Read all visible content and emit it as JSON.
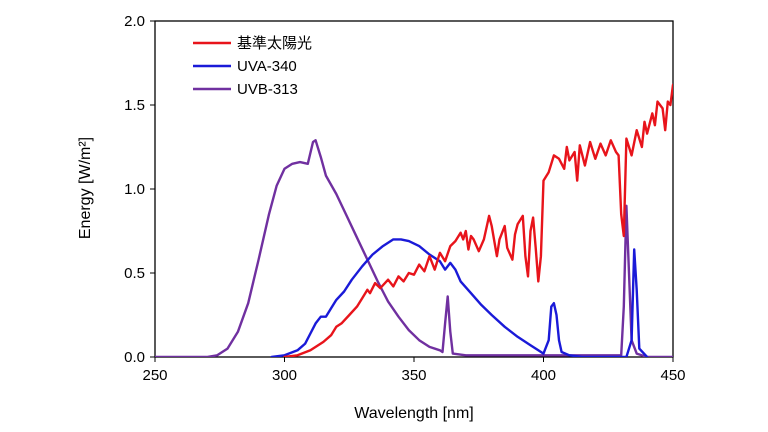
{
  "chart_data": {
    "type": "line",
    "title": "",
    "xlabel": "Wavelength [nm]",
    "ylabel": "Energy [W/m²]",
    "xlim": [
      250,
      450
    ],
    "ylim": [
      0,
      2.0
    ],
    "x_ticks": [
      250,
      300,
      350,
      400,
      450
    ],
    "y_ticks": [
      0.0,
      0.5,
      1.0,
      1.5,
      2.0
    ],
    "x_tick_labels": [
      "250",
      "300",
      "350",
      "400",
      "450"
    ],
    "y_tick_labels": [
      "0.0",
      "0.5",
      "1.0",
      "1.5",
      "2.0"
    ],
    "legend_position": "top-left",
    "series": [
      {
        "name": "基準太陽光",
        "color": "#e8141b",
        "points": [
          [
            300,
            0.0
          ],
          [
            305,
            0.01
          ],
          [
            310,
            0.04
          ],
          [
            315,
            0.09
          ],
          [
            318,
            0.13
          ],
          [
            320,
            0.18
          ],
          [
            322,
            0.2
          ],
          [
            325,
            0.25
          ],
          [
            328,
            0.3
          ],
          [
            330,
            0.35
          ],
          [
            332,
            0.4
          ],
          [
            333,
            0.38
          ],
          [
            335,
            0.44
          ],
          [
            337,
            0.41
          ],
          [
            340,
            0.46
          ],
          [
            342,
            0.42
          ],
          [
            344,
            0.48
          ],
          [
            346,
            0.45
          ],
          [
            348,
            0.5
          ],
          [
            350,
            0.49
          ],
          [
            352,
            0.55
          ],
          [
            354,
            0.51
          ],
          [
            356,
            0.6
          ],
          [
            358,
            0.52
          ],
          [
            360,
            0.62
          ],
          [
            362,
            0.57
          ],
          [
            364,
            0.66
          ],
          [
            366,
            0.69
          ],
          [
            368,
            0.74
          ],
          [
            369,
            0.7
          ],
          [
            370,
            0.75
          ],
          [
            371,
            0.64
          ],
          [
            372,
            0.72
          ],
          [
            373,
            0.7
          ],
          [
            375,
            0.63
          ],
          [
            377,
            0.7
          ],
          [
            379,
            0.84
          ],
          [
            380,
            0.78
          ],
          [
            382,
            0.6
          ],
          [
            383,
            0.7
          ],
          [
            385,
            0.78
          ],
          [
            386,
            0.65
          ],
          [
            388,
            0.58
          ],
          [
            389,
            0.73
          ],
          [
            390,
            0.79
          ],
          [
            392,
            0.84
          ],
          [
            393,
            0.6
          ],
          [
            394,
            0.48
          ],
          [
            395,
            0.75
          ],
          [
            396,
            0.83
          ],
          [
            397,
            0.65
          ],
          [
            398,
            0.45
          ],
          [
            399,
            0.6
          ],
          [
            400,
            1.05
          ],
          [
            402,
            1.1
          ],
          [
            404,
            1.2
          ],
          [
            406,
            1.18
          ],
          [
            408,
            1.12
          ],
          [
            409,
            1.25
          ],
          [
            410,
            1.17
          ],
          [
            412,
            1.22
          ],
          [
            413,
            1.05
          ],
          [
            414,
            1.26
          ],
          [
            416,
            1.14
          ],
          [
            418,
            1.28
          ],
          [
            420,
            1.18
          ],
          [
            422,
            1.27
          ],
          [
            424,
            1.2
          ],
          [
            426,
            1.29
          ],
          [
            428,
            1.22
          ],
          [
            429,
            1.2
          ],
          [
            430,
            0.85
          ],
          [
            431,
            0.72
          ],
          [
            432,
            1.3
          ],
          [
            434,
            1.2
          ],
          [
            436,
            1.35
          ],
          [
            438,
            1.25
          ],
          [
            439,
            1.4
          ],
          [
            440,
            1.33
          ],
          [
            442,
            1.45
          ],
          [
            443,
            1.38
          ],
          [
            444,
            1.52
          ],
          [
            446,
            1.48
          ],
          [
            447,
            1.35
          ],
          [
            448,
            1.52
          ],
          [
            449,
            1.5
          ],
          [
            450,
            1.62
          ]
        ]
      },
      {
        "name": "UVA-340",
        "color": "#1a1ad8",
        "points": [
          [
            295,
            0.0
          ],
          [
            300,
            0.01
          ],
          [
            305,
            0.04
          ],
          [
            308,
            0.08
          ],
          [
            310,
            0.14
          ],
          [
            312,
            0.2
          ],
          [
            314,
            0.24
          ],
          [
            316,
            0.24
          ],
          [
            318,
            0.29
          ],
          [
            320,
            0.34
          ],
          [
            323,
            0.39
          ],
          [
            326,
            0.46
          ],
          [
            330,
            0.54
          ],
          [
            334,
            0.61
          ],
          [
            338,
            0.66
          ],
          [
            342,
            0.7
          ],
          [
            345,
            0.7
          ],
          [
            348,
            0.69
          ],
          [
            352,
            0.66
          ],
          [
            356,
            0.61
          ],
          [
            360,
            0.57
          ],
          [
            362,
            0.52
          ],
          [
            364,
            0.56
          ],
          [
            366,
            0.52
          ],
          [
            368,
            0.45
          ],
          [
            372,
            0.38
          ],
          [
            376,
            0.31
          ],
          [
            380,
            0.25
          ],
          [
            385,
            0.18
          ],
          [
            390,
            0.12
          ],
          [
            395,
            0.07
          ],
          [
            398,
            0.04
          ],
          [
            400,
            0.02
          ],
          [
            402,
            0.1
          ],
          [
            403,
            0.3
          ],
          [
            404,
            0.32
          ],
          [
            405,
            0.25
          ],
          [
            406,
            0.1
          ],
          [
            407,
            0.03
          ],
          [
            410,
            0.01
          ],
          [
            415,
            0.0
          ],
          [
            432,
            0.0
          ],
          [
            434,
            0.1
          ],
          [
            435,
            0.64
          ],
          [
            436,
            0.4
          ],
          [
            437,
            0.05
          ],
          [
            440,
            0.0
          ]
        ]
      },
      {
        "name": "UVB-313",
        "color": "#7030a0",
        "points": [
          [
            250,
            0.0
          ],
          [
            270,
            0.0
          ],
          [
            274,
            0.01
          ],
          [
            278,
            0.05
          ],
          [
            282,
            0.15
          ],
          [
            286,
            0.32
          ],
          [
            290,
            0.58
          ],
          [
            294,
            0.85
          ],
          [
            297,
            1.02
          ],
          [
            300,
            1.12
          ],
          [
            303,
            1.15
          ],
          [
            306,
            1.16
          ],
          [
            309,
            1.15
          ],
          [
            311,
            1.28
          ],
          [
            312,
            1.29
          ],
          [
            314,
            1.19
          ],
          [
            316,
            1.08
          ],
          [
            320,
            0.97
          ],
          [
            324,
            0.84
          ],
          [
            328,
            0.71
          ],
          [
            332,
            0.58
          ],
          [
            336,
            0.45
          ],
          [
            340,
            0.33
          ],
          [
            344,
            0.24
          ],
          [
            348,
            0.16
          ],
          [
            352,
            0.1
          ],
          [
            356,
            0.06
          ],
          [
            360,
            0.04
          ],
          [
            361,
            0.03
          ],
          [
            362,
            0.2
          ],
          [
            363,
            0.36
          ],
          [
            364,
            0.15
          ],
          [
            365,
            0.02
          ],
          [
            370,
            0.01
          ],
          [
            380,
            0.01
          ],
          [
            400,
            0.01
          ],
          [
            420,
            0.01
          ],
          [
            430,
            0.01
          ],
          [
            431,
            0.3
          ],
          [
            432,
            0.9
          ],
          [
            433,
            0.5
          ],
          [
            434,
            0.1
          ],
          [
            436,
            0.02
          ],
          [
            440,
            0.0
          ],
          [
            450,
            0.0
          ]
        ]
      }
    ]
  }
}
